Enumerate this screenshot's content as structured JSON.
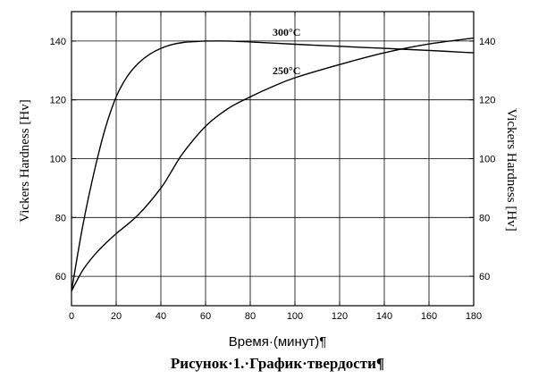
{
  "chart_data": {
    "type": "line",
    "xlabel": "Время·(минут)¶",
    "ylabel": "Vickers Hardness [Hv]",
    "ylabel_right": "Vickers Hardness [Hv]",
    "caption": "Рисунок·1.·График·твердости¶",
    "xlim": [
      0,
      180
    ],
    "ylim": [
      50,
      150
    ],
    "xticks": [
      0,
      20,
      40,
      60,
      80,
      100,
      120,
      140,
      160,
      180
    ],
    "yticks": [
      60,
      80,
      100,
      120,
      140
    ],
    "grid": true,
    "series": [
      {
        "name": "300°C",
        "label_at": [
          90,
          143
        ],
        "x": [
          0,
          5,
          10,
          15,
          20,
          25,
          30,
          35,
          40,
          45,
          50,
          55,
          60,
          70,
          80,
          90,
          100,
          120,
          140,
          160,
          180
        ],
        "y": [
          55,
          77,
          95,
          110,
          121,
          128,
          132.5,
          135.5,
          137.5,
          138.8,
          139.5,
          139.8,
          140,
          140,
          139.7,
          139.3,
          138.9,
          138.2,
          137.5,
          136.8,
          136
        ]
      },
      {
        "name": "250°C",
        "label_at": [
          90,
          130
        ],
        "x": [
          0,
          5,
          10,
          15,
          20,
          30,
          40,
          45,
          50,
          60,
          70,
          80,
          90,
          100,
          120,
          140,
          160,
          180
        ],
        "y": [
          55,
          62,
          67,
          71,
          74.5,
          81,
          90,
          96,
          102,
          111,
          117,
          121,
          124.5,
          127.5,
          132,
          136,
          139,
          141
        ]
      }
    ]
  }
}
